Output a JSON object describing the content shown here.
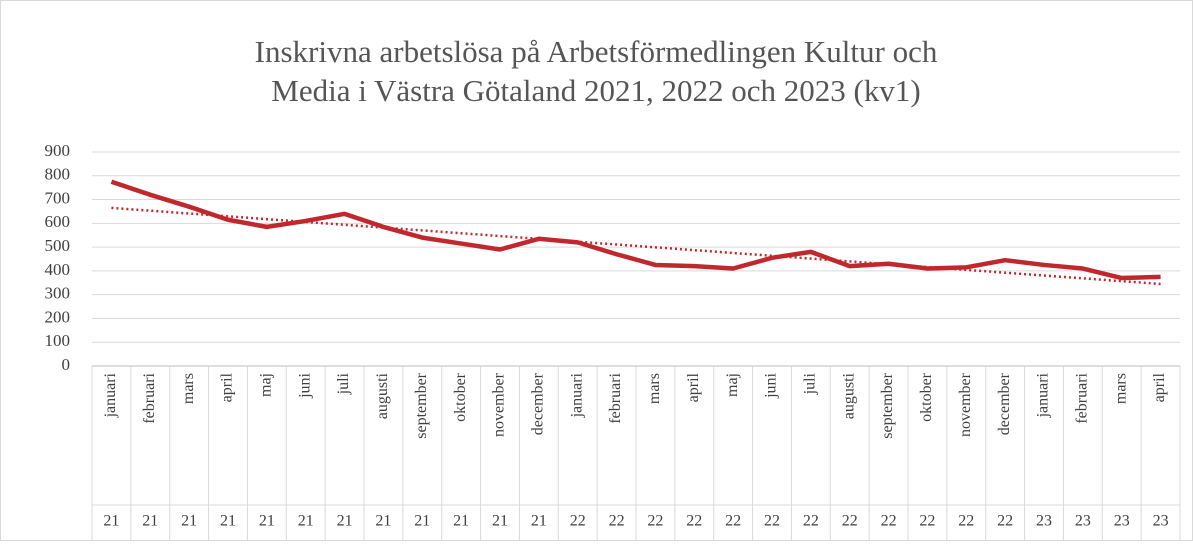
{
  "chart_data": {
    "type": "line",
    "title": [
      "Inskrivna arbetslösa på Arbetsförmedlingen Kultur och",
      "Media i Västra Götaland 2021, 2022 och 2023 (kv1)"
    ],
    "categories": [
      "januari",
      "februari",
      "mars",
      "april",
      "maj",
      "juni",
      "juli",
      "augusti",
      "september",
      "oktober",
      "november",
      "december",
      "januari",
      "februari",
      "mars",
      "april",
      "maj",
      "juni",
      "juli",
      "augusti",
      "september",
      "oktober",
      "november",
      "december",
      "januari",
      "februari",
      "mars",
      "april"
    ],
    "category_years": [
      "21",
      "21",
      "21",
      "21",
      "21",
      "21",
      "21",
      "21",
      "21",
      "21",
      "21",
      "21",
      "22",
      "22",
      "22",
      "22",
      "22",
      "22",
      "22",
      "22",
      "22",
      "22",
      "22",
      "22",
      "23",
      "23",
      "23",
      "23"
    ],
    "series": [
      {
        "color": "#c0282d",
        "values": [
          775,
          720,
          670,
          615,
          585,
          610,
          640,
          585,
          540,
          515,
          490,
          535,
          520,
          470,
          425,
          420,
          410,
          455,
          480,
          420,
          430,
          410,
          415,
          445,
          425,
          410,
          370,
          375
        ]
      }
    ],
    "trendline": {
      "color": "#c0282d",
      "values": [
        665,
        345
      ]
    },
    "ylim": [
      0,
      900
    ],
    "yticks": [
      0,
      100,
      200,
      300,
      400,
      500,
      600,
      700,
      800,
      900
    ],
    "grid": true
  }
}
